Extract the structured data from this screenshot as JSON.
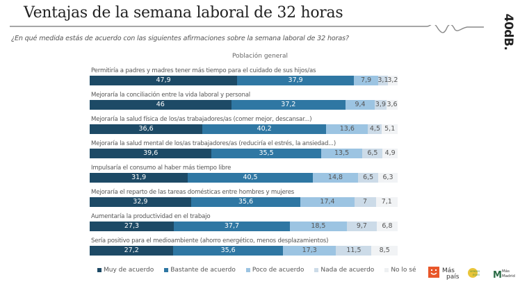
{
  "header": {
    "title": "Ventajas de la semana laboral de 32 horas",
    "brand": "40dB.",
    "question": "¿En qué medida estás de acuerdo con las siguientes afirmaciones sobre la semana laboral de 32 horas?",
    "population": "Población general"
  },
  "colors": {
    "muy": "#1d4a66",
    "bastante": "#2f77a3",
    "poco": "#9cc4e2",
    "nada": "#ccdbe8",
    "nolose": "#f1f3f5",
    "text_dark_bg": "#ffffff",
    "text_light_bg": "#555555"
  },
  "chart_data": {
    "type": "bar",
    "orientation": "horizontal-stacked-100",
    "title": "Ventajas de la semana laboral de 32 horas",
    "subtitle": "¿En qué medida estás de acuerdo con las siguientes afirmaciones sobre la semana laboral de 32 horas?",
    "group": "Población general",
    "categories": [
      "Permitiría a padres y madres tener más tiempo para el cuidado de sus hijos/as",
      "Mejoraría la conciliación entre la vida laboral y personal",
      "Mejoraría la salud física de los/as trabajadores/as (comer mejor, descansar...)",
      "Mejoraría la salud mental de los/as trabajadores/as (reduciría el estrés, la ansiedad...)",
      "Impulsaría el consumo al haber más tiempo libre",
      "Mejoraría el reparto de las tareas domésticas entre hombres y mujeres",
      "Aumentaría la productividad en el trabajo",
      "Sería positivo para el medioambiente (ahorro energético, menos desplazamientos)"
    ],
    "series": [
      {
        "name": "Muy de acuerdo",
        "key": "muy",
        "values": [
          47.9,
          46,
          36.6,
          39.6,
          31.9,
          32.9,
          27.3,
          27.2
        ],
        "labels": [
          "47,9",
          "46",
          "36,6",
          "39,6",
          "31,9",
          "32,9",
          "27,3",
          "27,2"
        ]
      },
      {
        "name": "Bastante de acuerdo",
        "key": "bastante",
        "values": [
          37.9,
          37.2,
          40.2,
          35.5,
          40.5,
          35.6,
          37.7,
          35.6
        ],
        "labels": [
          "37,9",
          "37,2",
          "40,2",
          "35,5",
          "40,5",
          "35,6",
          "37,7",
          "35,6"
        ]
      },
      {
        "name": "Poco de acuerdo",
        "key": "poco",
        "values": [
          7.9,
          9.4,
          13.6,
          13.5,
          14.8,
          17.4,
          18.5,
          17.3
        ],
        "labels": [
          "7,9",
          "9,4",
          "13,6",
          "13,5",
          "14,8",
          "17,4",
          "18,5",
          "17,3"
        ]
      },
      {
        "name": "Nada de acuerdo",
        "key": "nada",
        "values": [
          3.1,
          3.9,
          4.5,
          6.5,
          6.5,
          7,
          9.7,
          11.5
        ],
        "labels": [
          "3,1",
          "3,9",
          "4,5",
          "6,5",
          "6,5",
          "7",
          "9,7",
          "11,5"
        ]
      },
      {
        "name": "No lo sé",
        "key": "nolose",
        "values": [
          3.2,
          3.6,
          5.1,
          4.9,
          6.3,
          7.1,
          6.8,
          8.5
        ],
        "labels": [
          "3,2",
          "3,6",
          "5,1",
          "4,9",
          "6,3",
          "7,1",
          "6,8",
          "8,5"
        ]
      }
    ],
    "xlim": [
      0,
      100
    ],
    "grid": false,
    "legend": "bottom"
  },
  "legend": {
    "items": [
      "Muy de acuerdo",
      "Bastante de acuerdo",
      "Poco de acuerdo",
      "Nada de acuerdo",
      "No lo sé"
    ]
  },
  "logos": {
    "mas_pais": "Más país",
    "verdes_equo": "VERDES EQUO",
    "mas_madrid": "Más Madrid"
  }
}
